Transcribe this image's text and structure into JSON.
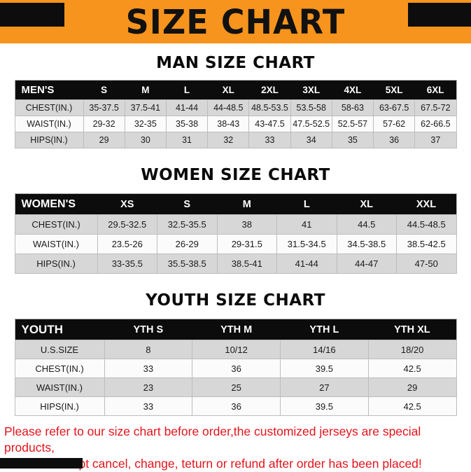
{
  "banner": {
    "title": "SIZE CHART",
    "bg_color": "#F7941D",
    "corner_color": "#0d0d0d"
  },
  "sections": [
    {
      "heading": "MAN SIZE CHART",
      "table": {
        "header": [
          "MEN'S",
          "S",
          "M",
          "L",
          "XL",
          "2XL",
          "3XL",
          "4XL",
          "5XL",
          "6XL"
        ],
        "rows": [
          [
            "CHEST(IN.)",
            "35-37.5",
            "37.5-41",
            "41-44",
            "44-48.5",
            "48.5-53.5",
            "53.5-58",
            "58-63",
            "63-67.5",
            "67.5-72"
          ],
          [
            "WAIST(IN.)",
            "29-32",
            "32-35",
            "35-38",
            "38-43",
            "43-47.5",
            "47.5-52.5",
            "52.5-57",
            "57-62",
            "62-66.5"
          ],
          [
            "HIPS(IN.)",
            "29",
            "30",
            "31",
            "32",
            "33",
            "34",
            "35",
            "36",
            "37"
          ]
        ]
      }
    },
    {
      "heading": "WOMEN SIZE CHART",
      "table": {
        "header": [
          "WOMEN'S",
          "XS",
          "S",
          "M",
          "L",
          "XL",
          "XXL"
        ],
        "rows": [
          [
            "CHEST(IN.)",
            "29.5-32.5",
            "32.5-35.5",
            "38",
            "41",
            "44.5",
            "44.5-48.5"
          ],
          [
            "WAIST(IN.)",
            "23.5-26",
            "26-29",
            "29-31.5",
            "31.5-34.5",
            "34.5-38.5",
            "38.5-42.5"
          ],
          [
            "HIPS(IN.)",
            "33-35.5",
            "35.5-38.5",
            "38.5-41",
            "41-44",
            "44-47",
            "47-50"
          ]
        ]
      }
    },
    {
      "heading": "YOUTH SIZE CHART",
      "table": {
        "header": [
          "YOUTH",
          "YTH S",
          "YTH M",
          "YTH L",
          "YTH XL"
        ],
        "rows": [
          [
            "U.S.SIZE",
            "8",
            "10/12",
            "14/16",
            "18/20"
          ],
          [
            "CHEST(IN.)",
            "33",
            "36",
            "39.5",
            "42.5"
          ],
          [
            "WAIST(IN.)",
            "23",
            "25",
            "27",
            "29"
          ],
          [
            "HIPS(IN.)",
            "33",
            "36",
            "39.5",
            "42.5"
          ]
        ]
      }
    }
  ],
  "footer": {
    "line1": "Please refer to our size chart before order,the customized jerseys are special products,",
    "line2": "we don't accept cancel, change, teturn or refund after order has been placed!"
  }
}
